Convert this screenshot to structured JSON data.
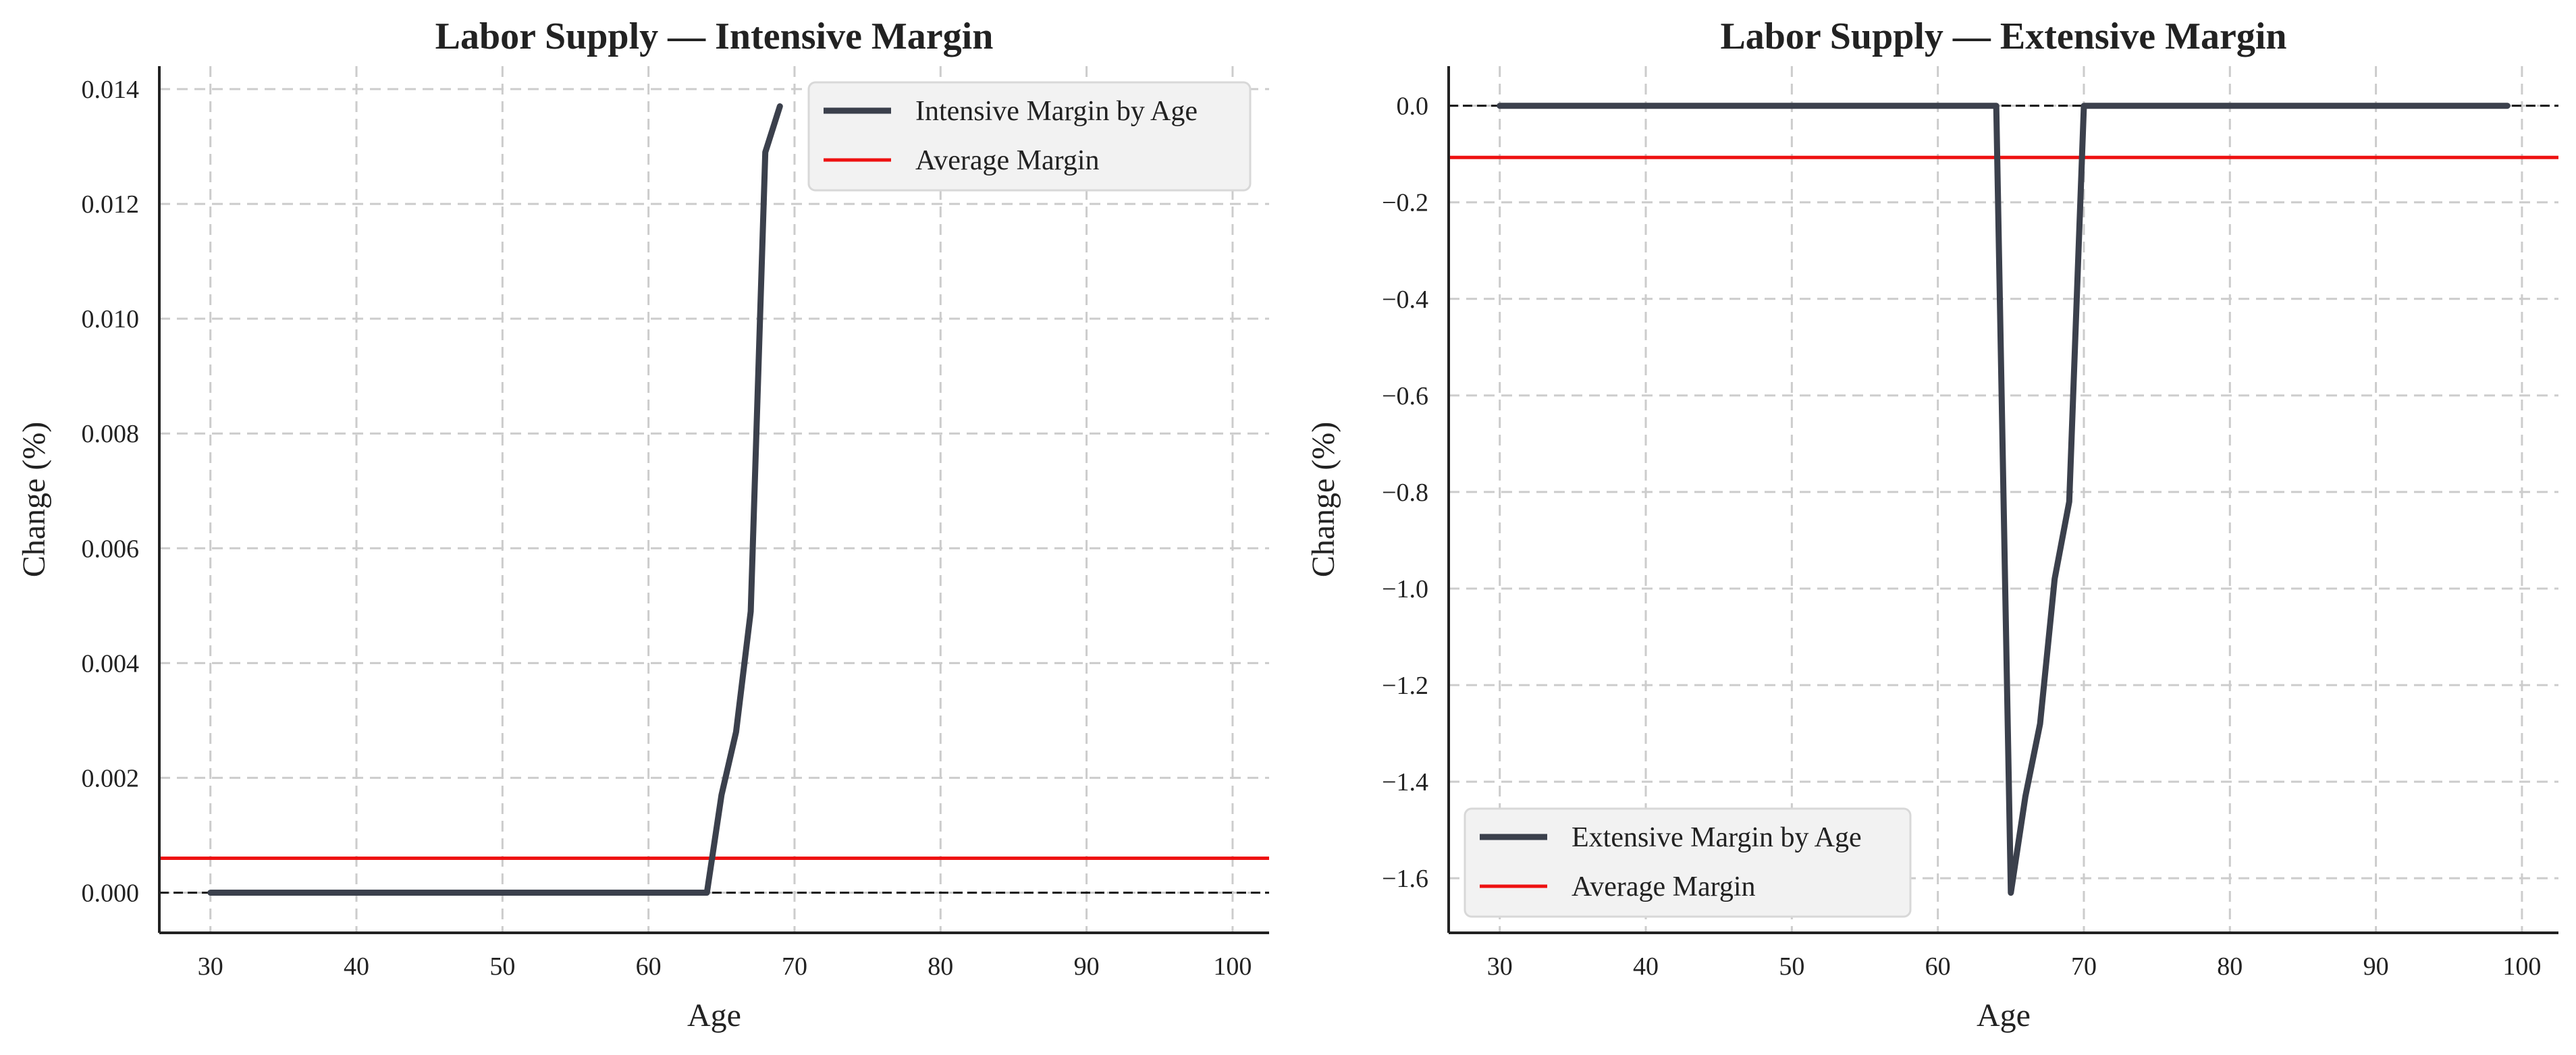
{
  "colors": {
    "series_line": "#3b404c",
    "average_line": "#ee1111",
    "zero_line": "#111111",
    "grid": "#cccccc",
    "axis": "#222222",
    "legend_bg": "#f2f2f2",
    "legend_border": "#d8d8d8"
  },
  "chart_data": [
    {
      "type": "line",
      "title": "Labor Supply — Intensive Margin",
      "xlabel": "Age",
      "ylabel": "Change (%)",
      "xlim": [
        26.5,
        102.5
      ],
      "ylim": [
        -0.0007,
        0.0144
      ],
      "xticks": [
        30,
        40,
        50,
        60,
        70,
        80,
        90,
        100
      ],
      "yticks": [
        0.0,
        0.002,
        0.004,
        0.006,
        0.008,
        0.01,
        0.012,
        0.014
      ],
      "ytick_labels": [
        "0.000",
        "0.002",
        "0.004",
        "0.006",
        "0.008",
        "0.010",
        "0.012",
        "0.014"
      ],
      "grid": true,
      "legend_location": "upper right",
      "zero_line": 0.0,
      "series": [
        {
          "name": "Intensive Margin by Age",
          "x": [
            30,
            31,
            32,
            33,
            34,
            35,
            36,
            37,
            38,
            39,
            40,
            41,
            42,
            43,
            44,
            45,
            46,
            47,
            48,
            49,
            50,
            51,
            52,
            53,
            54,
            55,
            56,
            57,
            58,
            59,
            60,
            61,
            62,
            63,
            64,
            65,
            66,
            67,
            68,
            69
          ],
          "y": [
            0,
            0,
            0,
            0,
            0,
            0,
            0,
            0,
            0,
            0,
            0,
            0,
            0,
            0,
            0,
            0,
            0,
            0,
            0,
            0,
            0,
            0,
            0,
            0,
            0,
            0,
            0,
            0,
            0,
            0,
            0,
            0,
            0,
            0,
            0,
            0.0017,
            0.0028,
            0.0049,
            0.0129,
            0.0137
          ]
        }
      ],
      "reference_lines": [
        {
          "name": "Average Margin",
          "y": 0.0006
        }
      ]
    },
    {
      "type": "line",
      "title": "Labor Supply — Extensive Margin",
      "xlabel": "Age",
      "ylabel": "Change (%)",
      "xlim": [
        26.5,
        102.5
      ],
      "ylim": [
        -1.713,
        0.082
      ],
      "xticks": [
        30,
        40,
        50,
        60,
        70,
        80,
        90,
        100
      ],
      "yticks": [
        0.0,
        -0.2,
        -0.4,
        -0.6,
        -0.8,
        -1.0,
        -1.2,
        -1.4,
        -1.6
      ],
      "ytick_labels": [
        "0.0",
        "−0.2",
        "−0.4",
        "−0.6",
        "−0.8",
        "−1.0",
        "−1.2",
        "−1.4",
        "−1.6"
      ],
      "grid": true,
      "legend_location": "lower left",
      "zero_line": 0.0,
      "series": [
        {
          "name": "Extensive Margin by Age",
          "x": [
            30,
            35,
            40,
            45,
            50,
            55,
            60,
            64,
            65,
            66,
            67,
            68,
            69,
            70,
            75,
            80,
            85,
            90,
            95,
            99
          ],
          "y": [
            0,
            0,
            0,
            0,
            0,
            0,
            0,
            0,
            -1.63,
            -1.43,
            -1.28,
            -0.98,
            -0.82,
            0,
            0,
            0,
            0,
            0,
            0,
            0
          ]
        }
      ],
      "reference_lines": [
        {
          "name": "Average Margin",
          "y": -0.107
        }
      ]
    }
  ]
}
